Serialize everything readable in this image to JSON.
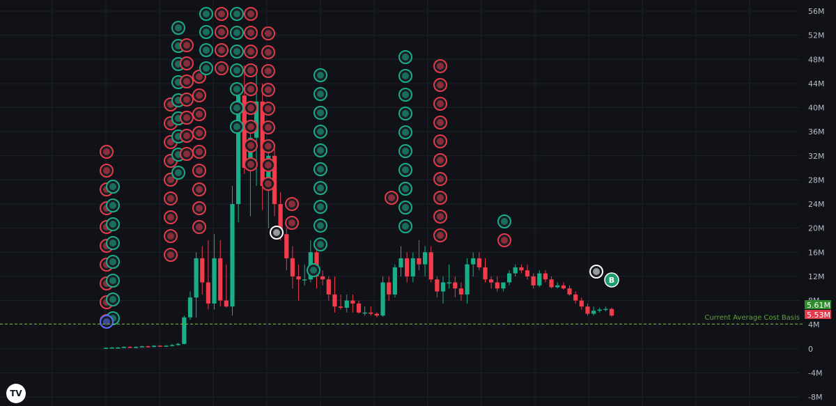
{
  "chart_data": {
    "type": "candlestick",
    "title": "",
    "xlabel": "",
    "ylabel": "",
    "ylim": [
      -8000000,
      57000000
    ],
    "y_ticks": [
      {
        "value": 56000000,
        "label": "56M"
      },
      {
        "value": 52000000,
        "label": "52M"
      },
      {
        "value": 48000000,
        "label": "48M"
      },
      {
        "value": 44000000,
        "label": "44M"
      },
      {
        "value": 40000000,
        "label": "40M"
      },
      {
        "value": 36000000,
        "label": "36M"
      },
      {
        "value": 32000000,
        "label": "32M"
      },
      {
        "value": 28000000,
        "label": "28M"
      },
      {
        "value": 24000000,
        "label": "24M"
      },
      {
        "value": 20000000,
        "label": "20M"
      },
      {
        "value": 16000000,
        "label": "16M"
      },
      {
        "value": 12000000,
        "label": "12M"
      },
      {
        "value": 8000000,
        "label": "8M"
      },
      {
        "value": 4000000,
        "label": "4M"
      },
      {
        "value": 0,
        "label": "0"
      },
      {
        "value": -4000000,
        "label": "-4M"
      },
      {
        "value": -8000000,
        "label": "-8M"
      }
    ],
    "grid": true,
    "candles": [
      {
        "o": 0.1,
        "h": 0.2,
        "l": 0.0,
        "c": 0.15
      },
      {
        "o": 0.15,
        "h": 0.3,
        "l": 0.1,
        "c": 0.2
      },
      {
        "o": 0.2,
        "h": 0.3,
        "l": 0.1,
        "c": 0.2
      },
      {
        "o": 0.2,
        "h": 0.4,
        "l": 0.1,
        "c": 0.3
      },
      {
        "o": 0.3,
        "h": 0.4,
        "l": 0.2,
        "c": 0.2
      },
      {
        "o": 0.2,
        "h": 0.4,
        "l": 0.1,
        "c": 0.3
      },
      {
        "o": 0.3,
        "h": 0.5,
        "l": 0.2,
        "c": 0.4
      },
      {
        "o": 0.4,
        "h": 0.5,
        "l": 0.3,
        "c": 0.3
      },
      {
        "o": 0.3,
        "h": 0.6,
        "l": 0.2,
        "c": 0.5
      },
      {
        "o": 0.5,
        "h": 0.6,
        "l": 0.3,
        "c": 0.4
      },
      {
        "o": 0.4,
        "h": 0.6,
        "l": 0.3,
        "c": 0.5
      },
      {
        "o": 0.5,
        "h": 0.8,
        "l": 0.4,
        "c": 0.6
      },
      {
        "o": 0.6,
        "h": 1.0,
        "l": 0.5,
        "c": 0.8
      },
      {
        "o": 0.8,
        "h": 5.5,
        "l": 0.7,
        "c": 5.2
      },
      {
        "o": 5.2,
        "h": 9.5,
        "l": 4.8,
        "c": 8.5
      },
      {
        "o": 8.5,
        "h": 16,
        "l": 5.2,
        "c": 15
      },
      {
        "o": 15,
        "h": 17,
        "l": 9,
        "c": 11
      },
      {
        "o": 11,
        "h": 18,
        "l": 6.5,
        "c": 7.5
      },
      {
        "o": 7.5,
        "h": 19,
        "l": 6.5,
        "c": 15
      },
      {
        "o": 15,
        "h": 18,
        "l": 7,
        "c": 8
      },
      {
        "o": 8,
        "h": 14,
        "l": 6.8,
        "c": 7
      },
      {
        "o": 7,
        "h": 27,
        "l": 5.5,
        "c": 24
      },
      {
        "o": 24,
        "h": 44,
        "l": 21,
        "c": 42
      },
      {
        "o": 42,
        "h": 47,
        "l": 29,
        "c": 30
      },
      {
        "o": 30,
        "h": 37,
        "l": 22,
        "c": 35
      },
      {
        "o": 35,
        "h": 47,
        "l": 27,
        "c": 41
      },
      {
        "o": 41,
        "h": 44,
        "l": 23,
        "c": 27
      },
      {
        "o": 27,
        "h": 34,
        "l": 20,
        "c": 32
      },
      {
        "o": 32,
        "h": 34,
        "l": 22,
        "c": 24
      },
      {
        "o": 24,
        "h": 26,
        "l": 18,
        "c": 19
      },
      {
        "o": 19,
        "h": 20,
        "l": 13,
        "c": 15
      },
      {
        "o": 15,
        "h": 17,
        "l": 10,
        "c": 12
      },
      {
        "o": 12,
        "h": 14,
        "l": 8,
        "c": 11.5
      },
      {
        "o": 11.5,
        "h": 14,
        "l": 10.5,
        "c": 11.5
      },
      {
        "o": 11.5,
        "h": 18,
        "l": 11,
        "c": 16
      },
      {
        "o": 16,
        "h": 17,
        "l": 10,
        "c": 12
      },
      {
        "o": 12,
        "h": 13,
        "l": 10.5,
        "c": 11.5
      },
      {
        "o": 11.5,
        "h": 12,
        "l": 8,
        "c": 9
      },
      {
        "o": 9,
        "h": 12,
        "l": 6,
        "c": 7
      },
      {
        "o": 7,
        "h": 9,
        "l": 6.5,
        "c": 6.8
      },
      {
        "o": 6.8,
        "h": 9,
        "l": 6,
        "c": 8
      },
      {
        "o": 8,
        "h": 9,
        "l": 6,
        "c": 7.5
      },
      {
        "o": 7.5,
        "h": 8,
        "l": 5.8,
        "c": 6
      },
      {
        "o": 6,
        "h": 7,
        "l": 5.5,
        "c": 6
      },
      {
        "o": 6,
        "h": 7,
        "l": 5.5,
        "c": 5.8
      },
      {
        "o": 5.8,
        "h": 6,
        "l": 5.2,
        "c": 5.5
      },
      {
        "o": 5.5,
        "h": 12,
        "l": 5.3,
        "c": 11
      },
      {
        "o": 11,
        "h": 12,
        "l": 8,
        "c": 9
      },
      {
        "o": 9,
        "h": 14,
        "l": 8.5,
        "c": 13.5
      },
      {
        "o": 13.5,
        "h": 17,
        "l": 12,
        "c": 15
      },
      {
        "o": 15,
        "h": 16,
        "l": 11,
        "c": 12
      },
      {
        "o": 12,
        "h": 16,
        "l": 11,
        "c": 15
      },
      {
        "o": 15,
        "h": 18,
        "l": 13,
        "c": 14
      },
      {
        "o": 14,
        "h": 17,
        "l": 12,
        "c": 16
      },
      {
        "o": 16,
        "h": 17,
        "l": 11,
        "c": 11.5
      },
      {
        "o": 11.5,
        "h": 12,
        "l": 8.5,
        "c": 9.5
      },
      {
        "o": 9.5,
        "h": 12,
        "l": 7.5,
        "c": 11
      },
      {
        "o": 11,
        "h": 14,
        "l": 10,
        "c": 11
      },
      {
        "o": 11,
        "h": 12,
        "l": 8.5,
        "c": 10
      },
      {
        "o": 10,
        "h": 11,
        "l": 8,
        "c": 9
      },
      {
        "o": 9,
        "h": 15,
        "l": 7.5,
        "c": 14
      },
      {
        "o": 14,
        "h": 16,
        "l": 12,
        "c": 15
      },
      {
        "o": 15,
        "h": 16,
        "l": 13,
        "c": 13.5
      },
      {
        "o": 13.5,
        "h": 15,
        "l": 11,
        "c": 11.5
      },
      {
        "o": 11.5,
        "h": 12,
        "l": 10,
        "c": 11
      },
      {
        "o": 11,
        "h": 12,
        "l": 9.5,
        "c": 10
      },
      {
        "o": 10,
        "h": 11,
        "l": 9.5,
        "c": 11
      },
      {
        "o": 11,
        "h": 13,
        "l": 10.5,
        "c": 12.5
      },
      {
        "o": 12.5,
        "h": 14,
        "l": 12,
        "c": 13.5
      },
      {
        "o": 13.5,
        "h": 14,
        "l": 12.5,
        "c": 13
      },
      {
        "o": 13,
        "h": 14,
        "l": 11.5,
        "c": 12
      },
      {
        "o": 12,
        "h": 12.5,
        "l": 10,
        "c": 10.5
      },
      {
        "o": 10.5,
        "h": 13,
        "l": 10.2,
        "c": 12.5
      },
      {
        "o": 12.5,
        "h": 13,
        "l": 11,
        "c": 11.5
      },
      {
        "o": 11.5,
        "h": 12,
        "l": 10,
        "c": 10.2
      },
      {
        "o": 10.2,
        "h": 11,
        "l": 10,
        "c": 10.5
      },
      {
        "o": 10.5,
        "h": 11,
        "l": 9.8,
        "c": 10
      },
      {
        "o": 10,
        "h": 10.5,
        "l": 8.8,
        "c": 9
      },
      {
        "o": 9,
        "h": 9.5,
        "l": 7.5,
        "c": 8
      },
      {
        "o": 8,
        "h": 8.5,
        "l": 6.5,
        "c": 7
      },
      {
        "o": 7,
        "h": 7.5,
        "l": 5.5,
        "c": 5.8
      },
      {
        "o": 5.8,
        "h": 7,
        "l": 5.5,
        "c": 6.3
      },
      {
        "o": 6.3,
        "h": 6.8,
        "l": 6,
        "c": 6.5
      },
      {
        "o": 6.5,
        "h": 7,
        "l": 6.2,
        "c": 6.6
      },
      {
        "o": 6.6,
        "h": 6.8,
        "l": 5.3,
        "c": 5.5
      }
    ],
    "cost_basis_line": {
      "value": 5610000,
      "label": "Current Average Cost Basis",
      "color": "#7cbf3a"
    },
    "price_tags": [
      {
        "value": 5610000,
        "label": "5.61M",
        "color": "#2e8b2e"
      },
      {
        "value": 5530000,
        "label": "5.53M",
        "color": "#e33b4a"
      }
    ],
    "marker_b": {
      "label": "B",
      "color": "#1e9e6e"
    },
    "up_color": "#1aae88",
    "down_color": "#f23b4b"
  },
  "logo": {
    "label": "TV"
  }
}
